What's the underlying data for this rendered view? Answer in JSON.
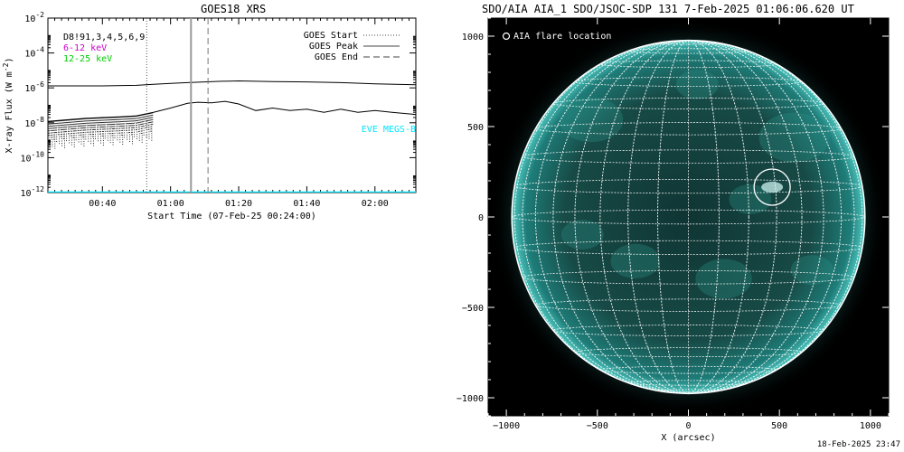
{
  "left_title": "GOES18 XRS",
  "right_title": "SDO/AIA AIA_1 SDO/JSOC-SDP 131  7-Feb-2025 01:06:06.620 UT",
  "footer_timestamp": "18-Feb-2025 23:47",
  "chart_data": [
    {
      "type": "line",
      "title": "GOES18 XRS",
      "xlabel": "Start Time (07-Feb-25 00:24:00)",
      "ylabel": "X-ray Flux (W m^-2)",
      "y_scale": "log",
      "ylim": [
        1e-12,
        0.01
      ],
      "xlim": [
        "00:24",
        "02:12"
      ],
      "x_ticks": [
        "00:40",
        "01:00",
        "01:20",
        "01:40",
        "02:00"
      ],
      "y_ticks": [
        "10^-12",
        "10^-10",
        "10^-8",
        "10^-6",
        "10^-4",
        "10^-2"
      ],
      "annotations": [
        {
          "text": "D8!91,3,4,5,6,9",
          "color": "#000000"
        },
        {
          "text": "6-12 keV",
          "color": "#cc00cc"
        },
        {
          "text": "12-25 keV",
          "color": "#00cc00"
        },
        {
          "text": "EVE MEGS-B",
          "color": "#00e5ff"
        }
      ],
      "legend": [
        {
          "label": "GOES Start",
          "style": "dotted"
        },
        {
          "label": "GOES Peak",
          "style": "solid"
        },
        {
          "label": "GOES End",
          "style": "dashed"
        }
      ],
      "legend_position": "top-right",
      "markers": {
        "goes_start": "00:53",
        "aia_time": "01:06",
        "goes_peak": "01:06",
        "goes_end": "01:11"
      },
      "series": [
        {
          "color": "#000000",
          "x": [
            "00:24",
            "00:30",
            "00:40",
            "00:50",
            "00:55",
            "01:00",
            "01:05",
            "01:10",
            "01:15",
            "01:20",
            "01:30",
            "01:40",
            "01:50",
            "02:00",
            "02:12"
          ],
          "values": [
            1.3e-06,
            1.3e-06,
            1.3e-06,
            1.4e-06,
            1.6e-06,
            1.8e-06,
            2e-06,
            2.2e-06,
            2.4e-06,
            2.5e-06,
            2.3e-06,
            2.2e-06,
            2e-06,
            1.7e-06,
            1.5e-06
          ]
        },
        {
          "color": "#000000",
          "x": [
            "00:24",
            "00:30",
            "00:35",
            "00:40",
            "00:45",
            "00:50",
            "00:55",
            "01:00",
            "01:05",
            "01:08",
            "01:12",
            "01:16",
            "01:20",
            "01:25",
            "01:30",
            "01:35",
            "01:40",
            "01:45",
            "01:50",
            "01:55",
            "02:00",
            "02:05",
            "02:12"
          ],
          "values": [
            1.2e-08,
            1.5e-08,
            1.8e-08,
            2e-08,
            2.2e-08,
            2.5e-08,
            4e-08,
            7e-08,
            1.3e-07,
            1.5e-07,
            1.4e-07,
            1.7e-07,
            1.2e-07,
            5e-08,
            7e-08,
            5e-08,
            6e-08,
            4e-08,
            6e-08,
            4e-08,
            5e-08,
            4e-08,
            3e-08
          ]
        },
        {
          "color": "#00e5ff",
          "x": [
            "00:24",
            "02:12"
          ],
          "values": [
            1e-12,
            1e-12
          ]
        }
      ]
    },
    {
      "type": "scatter",
      "title": "SDO/AIA AIA_1 SDO/JSOC-SDP 131  7-Feb-2025 01:06:06.620 UT",
      "xlabel": "X (arcsec)",
      "ylabel": "",
      "xlim": [
        -1100,
        1100
      ],
      "ylim": [
        -1100,
        1100
      ],
      "x_ticks": [
        -1000,
        -500,
        0,
        500,
        1000
      ],
      "y_ticks": [
        -1000,
        -500,
        0,
        500,
        1000
      ],
      "image": "solar disk, AIA 131 channel, teal colormap",
      "grid": true,
      "solar_radius_arcsec": 970,
      "legend": [
        {
          "label": "AIA flare location",
          "marker": "open-circle"
        }
      ],
      "legend_position": "top-left",
      "series": [
        {
          "name": "AIA flare location",
          "x": [
            460
          ],
          "y": [
            165
          ]
        }
      ]
    }
  ]
}
